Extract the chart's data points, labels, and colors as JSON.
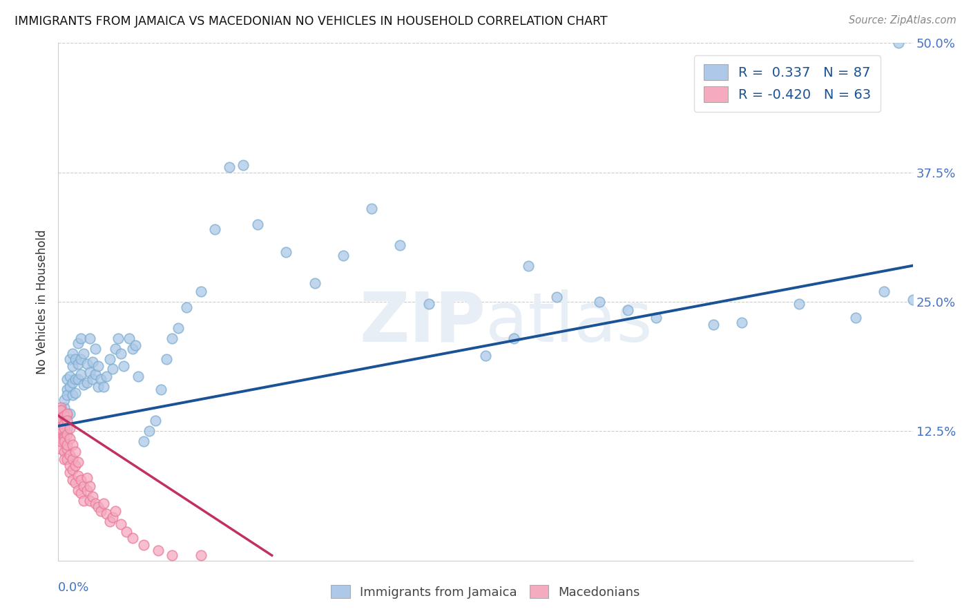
{
  "title": "IMMIGRANTS FROM JAMAICA VS MACEDONIAN NO VEHICLES IN HOUSEHOLD CORRELATION CHART",
  "source": "Source: ZipAtlas.com",
  "xmin": 0.0,
  "xmax": 0.3,
  "ymin": 0.0,
  "ymax": 0.5,
  "ylabel_ticks": [
    12.5,
    25.0,
    37.5,
    50.0
  ],
  "legend_blue_r": "0.337",
  "legend_blue_n": "87",
  "legend_pink_r": "-0.420",
  "legend_pink_n": "63",
  "legend_label_blue": "Immigrants from Jamaica",
  "legend_label_pink": "Macedonians",
  "blue_color": "#adc8e8",
  "pink_color": "#f5aabf",
  "blue_edge_color": "#7aaed0",
  "pink_edge_color": "#e87a9a",
  "blue_line_color": "#1a5296",
  "pink_line_color": "#c03060",
  "watermark_color": "#e8eef5",
  "blue_x": [
    0.001,
    0.001,
    0.001,
    0.002,
    0.002,
    0.002,
    0.002,
    0.003,
    0.003,
    0.003,
    0.003,
    0.003,
    0.004,
    0.004,
    0.004,
    0.004,
    0.005,
    0.005,
    0.005,
    0.005,
    0.006,
    0.006,
    0.006,
    0.007,
    0.007,
    0.007,
    0.008,
    0.008,
    0.008,
    0.009,
    0.009,
    0.01,
    0.01,
    0.011,
    0.011,
    0.012,
    0.012,
    0.013,
    0.013,
    0.014,
    0.014,
    0.015,
    0.016,
    0.017,
    0.018,
    0.019,
    0.02,
    0.021,
    0.022,
    0.023,
    0.025,
    0.026,
    0.027,
    0.028,
    0.03,
    0.032,
    0.034,
    0.036,
    0.038,
    0.04,
    0.042,
    0.045,
    0.05,
    0.055,
    0.06,
    0.065,
    0.07,
    0.08,
    0.09,
    0.1,
    0.11,
    0.13,
    0.15,
    0.16,
    0.175,
    0.19,
    0.21,
    0.24,
    0.26,
    0.28,
    0.29,
    0.295,
    0.3,
    0.165,
    0.2,
    0.23,
    0.12
  ],
  "blue_y": [
    0.138,
    0.145,
    0.13,
    0.135,
    0.148,
    0.122,
    0.155,
    0.14,
    0.165,
    0.128,
    0.16,
    0.175,
    0.142,
    0.195,
    0.178,
    0.168,
    0.188,
    0.172,
    0.2,
    0.16,
    0.162,
    0.175,
    0.195,
    0.19,
    0.21,
    0.175,
    0.18,
    0.195,
    0.215,
    0.17,
    0.2,
    0.172,
    0.19,
    0.182,
    0.215,
    0.175,
    0.192,
    0.18,
    0.205,
    0.168,
    0.188,
    0.175,
    0.168,
    0.178,
    0.195,
    0.185,
    0.205,
    0.215,
    0.2,
    0.188,
    0.215,
    0.205,
    0.208,
    0.178,
    0.115,
    0.125,
    0.135,
    0.165,
    0.195,
    0.215,
    0.225,
    0.245,
    0.26,
    0.32,
    0.38,
    0.382,
    0.325,
    0.298,
    0.268,
    0.295,
    0.34,
    0.248,
    0.198,
    0.215,
    0.255,
    0.25,
    0.235,
    0.23,
    0.248,
    0.235,
    0.26,
    0.5,
    0.252,
    0.285,
    0.242,
    0.228,
    0.305
  ],
  "pink_x": [
    0.001,
    0.001,
    0.001,
    0.001,
    0.001,
    0.001,
    0.001,
    0.001,
    0.001,
    0.001,
    0.002,
    0.002,
    0.002,
    0.002,
    0.002,
    0.002,
    0.002,
    0.002,
    0.003,
    0.003,
    0.003,
    0.003,
    0.003,
    0.003,
    0.004,
    0.004,
    0.004,
    0.004,
    0.004,
    0.005,
    0.005,
    0.005,
    0.005,
    0.006,
    0.006,
    0.006,
    0.007,
    0.007,
    0.007,
    0.008,
    0.008,
    0.009,
    0.009,
    0.01,
    0.01,
    0.011,
    0.011,
    0.012,
    0.013,
    0.014,
    0.015,
    0.016,
    0.017,
    0.018,
    0.019,
    0.02,
    0.022,
    0.024,
    0.026,
    0.03,
    0.035,
    0.04,
    0.05
  ],
  "pink_y": [
    0.135,
    0.148,
    0.125,
    0.132,
    0.118,
    0.145,
    0.128,
    0.108,
    0.138,
    0.115,
    0.12,
    0.132,
    0.118,
    0.105,
    0.128,
    0.098,
    0.14,
    0.115,
    0.108,
    0.122,
    0.142,
    0.112,
    0.098,
    0.135,
    0.085,
    0.102,
    0.118,
    0.092,
    0.128,
    0.088,
    0.098,
    0.112,
    0.078,
    0.092,
    0.105,
    0.075,
    0.082,
    0.095,
    0.068,
    0.078,
    0.065,
    0.072,
    0.058,
    0.068,
    0.08,
    0.058,
    0.072,
    0.062,
    0.055,
    0.052,
    0.048,
    0.055,
    0.045,
    0.038,
    0.042,
    0.048,
    0.035,
    0.028,
    0.022,
    0.015,
    0.01,
    0.005,
    0.005
  ],
  "blue_trend_x": [
    0.0,
    0.3
  ],
  "blue_trend_y": [
    0.13,
    0.285
  ],
  "pink_trend_x": [
    0.0,
    0.075
  ],
  "pink_trend_y": [
    0.14,
    0.005
  ]
}
